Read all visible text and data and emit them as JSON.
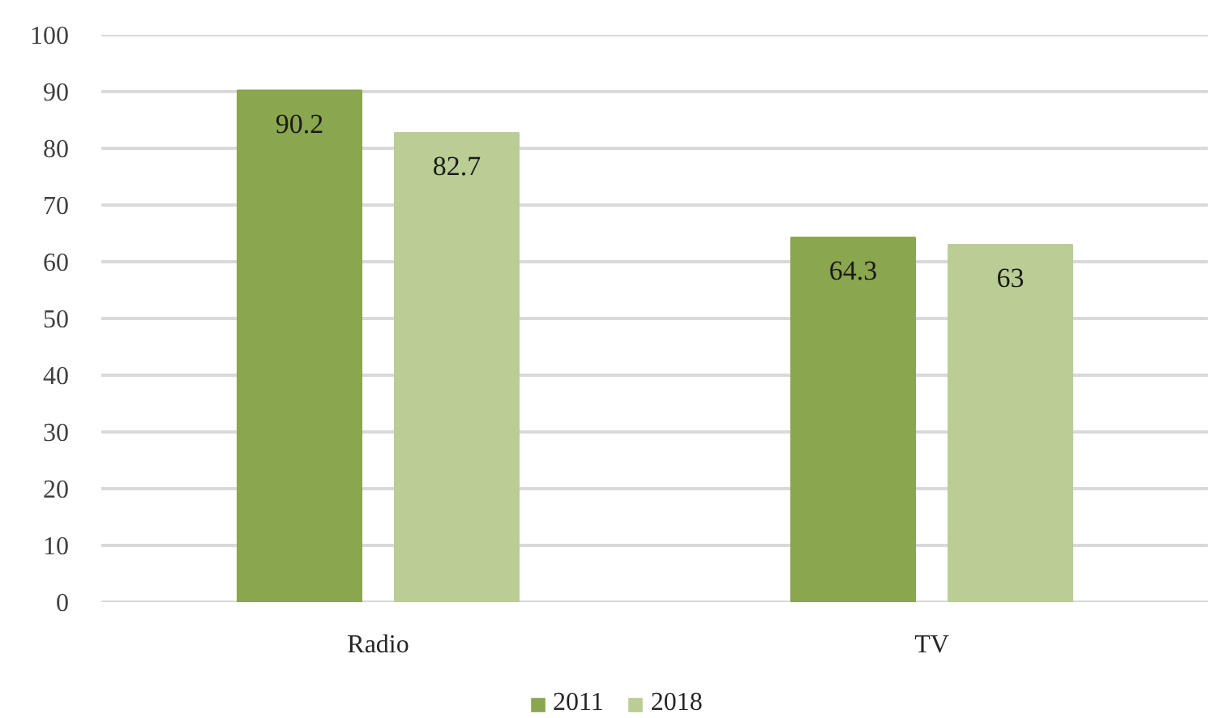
{
  "chart_data": {
    "type": "bar",
    "categories": [
      "Radio",
      "TV"
    ],
    "series": [
      {
        "name": "2011",
        "color": "#8aa64e",
        "values": [
          90.2,
          64.3
        ]
      },
      {
        "name": "2018",
        "color": "#b9cd95",
        "values": [
          82.7,
          63
        ]
      }
    ],
    "ylim": [
      0,
      100
    ],
    "yticks": [
      0,
      10,
      20,
      30,
      40,
      50,
      60,
      70,
      80,
      90,
      100
    ],
    "grid": "y",
    "legend": "bottom",
    "data_labels": true
  }
}
